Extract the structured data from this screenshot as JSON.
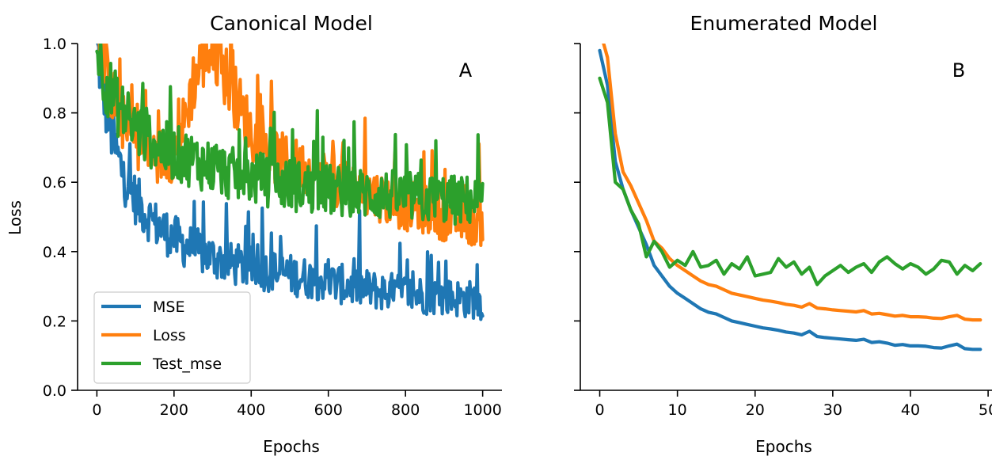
{
  "colors": {
    "MSE": "#1f77b4",
    "Loss": "#ff7f0e",
    "Test_mse": "#2ca02c"
  },
  "chart_data": [
    {
      "type": "line",
      "title": "Canonical Model",
      "panel_label": "A",
      "xlabel": "Epochs",
      "ylabel": "Loss",
      "xlim": [
        -50,
        1050
      ],
      "ylim": [
        0.0,
        1.0
      ],
      "xticks": [
        0,
        200,
        400,
        600,
        800,
        1000
      ],
      "yticks": [
        0.0,
        0.2,
        0.4,
        0.6,
        0.8,
        1.0
      ],
      "show_yticklabels": true,
      "legend": {
        "location": "lower-left",
        "entries": [
          "MSE",
          "Loss",
          "Test_mse"
        ]
      },
      "x": [
        0,
        25,
        50,
        75,
        100,
        125,
        150,
        175,
        200,
        225,
        250,
        275,
        300,
        325,
        350,
        375,
        400,
        425,
        450,
        475,
        500,
        525,
        550,
        575,
        600,
        625,
        650,
        675,
        700,
        725,
        750,
        775,
        800,
        825,
        850,
        875,
        900,
        925,
        950,
        975,
        1000
      ],
      "series": [
        {
          "name": "MSE",
          "noisy": true,
          "values": [
            0.96,
            0.78,
            0.66,
            0.58,
            0.53,
            0.49,
            0.46,
            0.44,
            0.42,
            0.4,
            0.39,
            0.375,
            0.365,
            0.355,
            0.345,
            0.34,
            0.335,
            0.33,
            0.325,
            0.32,
            0.315,
            0.31,
            0.305,
            0.3,
            0.295,
            0.29,
            0.285,
            0.28,
            0.275,
            0.27,
            0.268,
            0.265,
            0.262,
            0.26,
            0.258,
            0.255,
            0.252,
            0.25,
            0.247,
            0.245,
            0.24
          ]
        },
        {
          "name": "Loss",
          "noisy": true,
          "values": [
            1.0,
            0.88,
            0.79,
            0.73,
            0.7,
            0.68,
            0.66,
            0.65,
            0.66,
            0.74,
            0.86,
            0.93,
            0.95,
            0.9,
            0.84,
            0.78,
            0.72,
            0.68,
            0.66,
            0.64,
            0.63,
            0.62,
            0.61,
            0.6,
            0.59,
            0.58,
            0.57,
            0.56,
            0.55,
            0.54,
            0.53,
            0.52,
            0.51,
            0.505,
            0.5,
            0.49,
            0.48,
            0.475,
            0.47,
            0.465,
            0.46
          ]
        },
        {
          "name": "Test_mse",
          "noisy": true,
          "values": [
            0.95,
            0.86,
            0.8,
            0.76,
            0.73,
            0.71,
            0.69,
            0.67,
            0.66,
            0.65,
            0.64,
            0.63,
            0.62,
            0.61,
            0.6,
            0.595,
            0.59,
            0.585,
            0.58,
            0.575,
            0.57,
            0.565,
            0.56,
            0.56,
            0.555,
            0.55,
            0.55,
            0.545,
            0.545,
            0.54,
            0.54,
            0.54,
            0.535,
            0.535,
            0.53,
            0.53,
            0.53,
            0.525,
            0.525,
            0.525,
            0.52
          ]
        }
      ]
    },
    {
      "type": "line",
      "title": "Enumerated Model",
      "panel_label": "B",
      "xlabel": "Epochs",
      "ylabel": "",
      "xlim": [
        -2.5,
        50.5
      ],
      "ylim": [
        0.0,
        1.0
      ],
      "xticks": [
        0,
        10,
        20,
        30,
        40,
        50
      ],
      "yticks": [
        0.0,
        0.2,
        0.4,
        0.6,
        0.8,
        1.0
      ],
      "show_yticklabels": false,
      "x": [
        0,
        1,
        2,
        3,
        4,
        5,
        6,
        7,
        8,
        9,
        10,
        11,
        12,
        13,
        14,
        15,
        16,
        17,
        18,
        19,
        20,
        21,
        22,
        23,
        24,
        25,
        26,
        27,
        28,
        29,
        30,
        31,
        32,
        33,
        34,
        35,
        36,
        37,
        38,
        39,
        40,
        41,
        42,
        43,
        44,
        45,
        46,
        47,
        48,
        49
      ],
      "series": [
        {
          "name": "MSE",
          "values": [
            0.98,
            0.88,
            0.66,
            0.58,
            0.52,
            0.47,
            0.42,
            0.36,
            0.33,
            0.3,
            0.28,
            0.265,
            0.25,
            0.235,
            0.225,
            0.22,
            0.21,
            0.2,
            0.195,
            0.19,
            0.185,
            0.18,
            0.177,
            0.173,
            0.168,
            0.165,
            0.16,
            0.17,
            0.155,
            0.152,
            0.15,
            0.148,
            0.146,
            0.144,
            0.147,
            0.138,
            0.14,
            0.136,
            0.13,
            0.132,
            0.128,
            0.128,
            0.127,
            0.123,
            0.122,
            0.128,
            0.133,
            0.12,
            0.118,
            0.118
          ]
        },
        {
          "name": "Loss",
          "values": [
            1.04,
            0.96,
            0.74,
            0.63,
            0.59,
            0.54,
            0.49,
            0.43,
            0.41,
            0.38,
            0.36,
            0.345,
            0.33,
            0.315,
            0.305,
            0.3,
            0.29,
            0.28,
            0.275,
            0.27,
            0.265,
            0.26,
            0.257,
            0.253,
            0.248,
            0.245,
            0.24,
            0.25,
            0.237,
            0.235,
            0.232,
            0.23,
            0.228,
            0.226,
            0.23,
            0.22,
            0.222,
            0.218,
            0.214,
            0.216,
            0.212,
            0.212,
            0.211,
            0.208,
            0.207,
            0.212,
            0.216,
            0.205,
            0.203,
            0.203
          ]
        },
        {
          "name": "Test_mse",
          "values": [
            0.9,
            0.83,
            0.6,
            0.58,
            0.52,
            0.48,
            0.385,
            0.43,
            0.4,
            0.355,
            0.375,
            0.36,
            0.4,
            0.355,
            0.36,
            0.375,
            0.335,
            0.365,
            0.35,
            0.385,
            0.33,
            0.335,
            0.34,
            0.38,
            0.355,
            0.37,
            0.335,
            0.355,
            0.305,
            0.33,
            0.345,
            0.36,
            0.34,
            0.355,
            0.365,
            0.34,
            0.37,
            0.385,
            0.365,
            0.35,
            0.365,
            0.355,
            0.335,
            0.35,
            0.375,
            0.37,
            0.335,
            0.36,
            0.345,
            0.365
          ]
        }
      ]
    }
  ]
}
